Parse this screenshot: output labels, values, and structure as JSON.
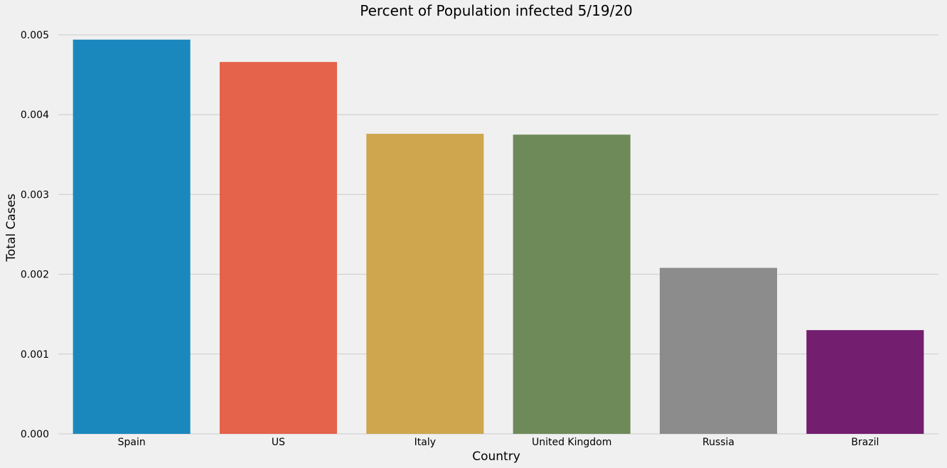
{
  "chart_data": {
    "type": "bar",
    "title": "Percent of Population infected 5/19/20",
    "xlabel": "Country",
    "ylabel": "Total Cases",
    "categories": [
      "Spain",
      "US",
      "Italy",
      "United Kingdom",
      "Russia",
      "Brazil"
    ],
    "values": [
      0.00494,
      0.00466,
      0.00376,
      0.00375,
      0.00208,
      0.0013
    ],
    "colors": [
      "#1b88bd",
      "#e5624b",
      "#cfa54e",
      "#6e8a59",
      "#8c8c8c",
      "#731e6f"
    ],
    "ylim": [
      0,
      0.005
    ],
    "yticks": [
      "0.000",
      "0.001",
      "0.002",
      "0.003",
      "0.004",
      "0.005"
    ],
    "grid": true,
    "background": "#f0f0f0"
  }
}
